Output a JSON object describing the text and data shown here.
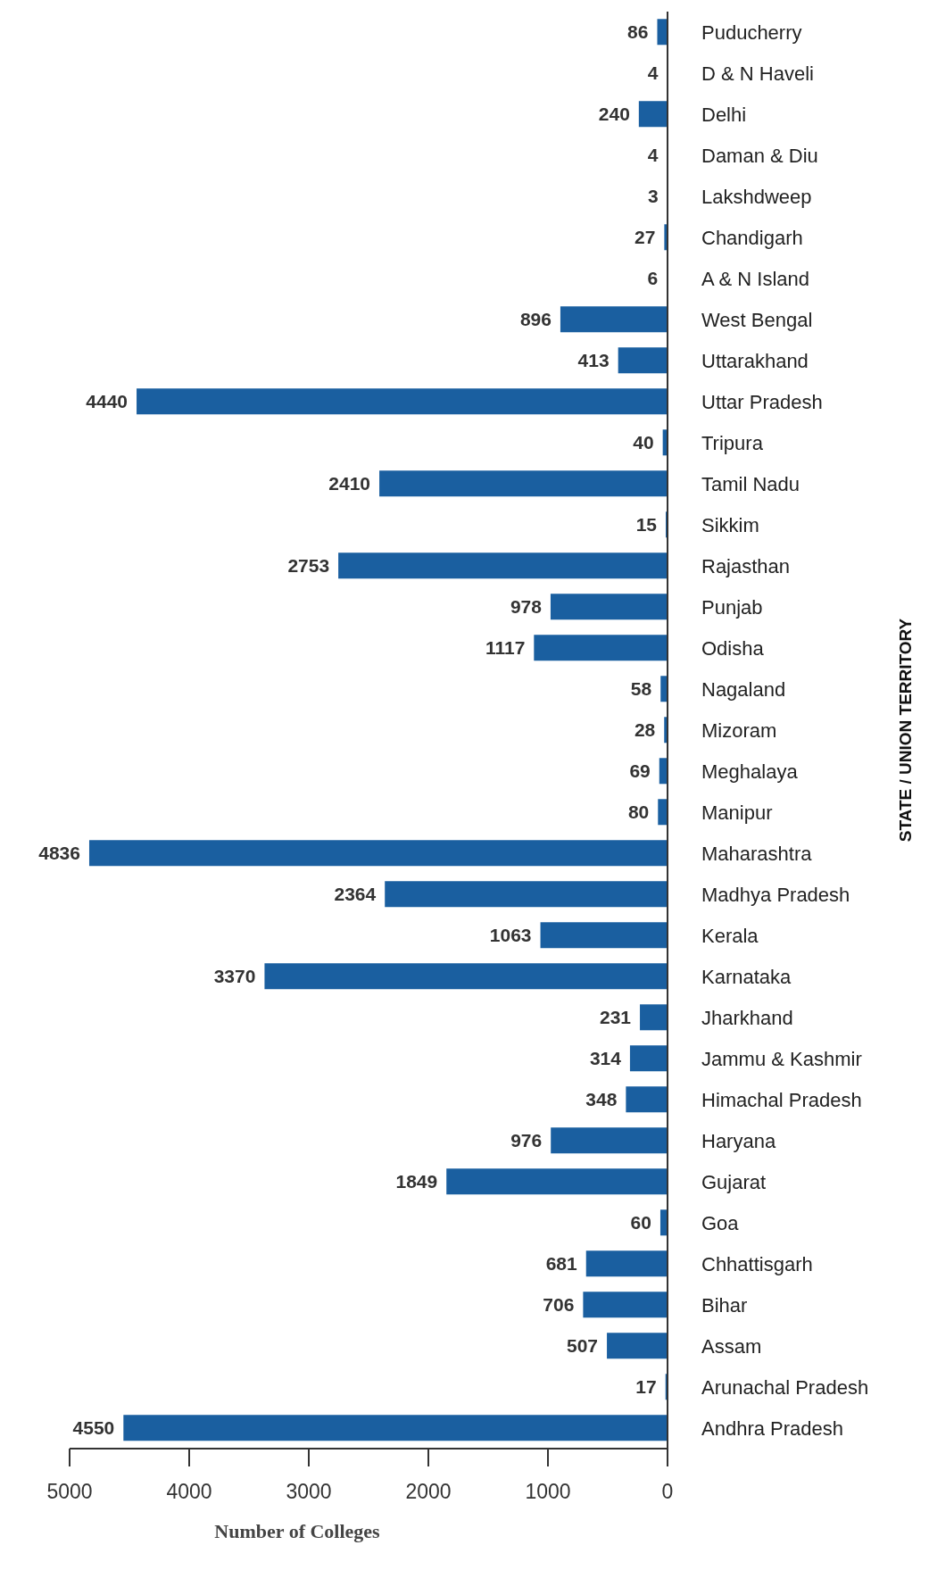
{
  "chart_data": {
    "type": "bar",
    "orientation": "horizontal",
    "xlabel": "Number of Colleges",
    "ylabel": "STATE / UNION TERRITORY",
    "categories": [
      "Puducherry",
      "D & N Haveli",
      "Delhi",
      "Daman & Diu",
      "Lakshdweep",
      "Chandigarh",
      "A & N Island",
      "West Bengal",
      "Uttarakhand",
      "Uttar Pradesh",
      "Tripura",
      "Tamil Nadu",
      "Sikkim",
      "Rajasthan",
      "Punjab",
      "Odisha",
      "Nagaland",
      "Mizoram",
      "Meghalaya",
      "Manipur",
      "Maharashtra",
      "Madhya Pradesh",
      "Kerala",
      "Karnataka",
      "Jharkhand",
      "Jammu & Kashmir",
      "Himachal Pradesh",
      "Haryana",
      "Gujarat",
      "Goa",
      "Chhattisgarh",
      "Bihar",
      "Assam",
      "Arunachal Pradesh",
      "Andhra Pradesh"
    ],
    "values": [
      86,
      4,
      240,
      4,
      3,
      27,
      6,
      896,
      413,
      4440,
      40,
      2410,
      15,
      2753,
      978,
      1117,
      58,
      28,
      69,
      80,
      4836,
      2364,
      1063,
      3370,
      231,
      314,
      348,
      976,
      1849,
      60,
      681,
      706,
      507,
      17,
      4550
    ],
    "color": "#1a5fa0",
    "xlim": [
      5000,
      0
    ],
    "xticks": [
      5000,
      4000,
      3000,
      2000,
      1000,
      0
    ],
    "data_labels": true,
    "grid": false,
    "legend": false
  }
}
